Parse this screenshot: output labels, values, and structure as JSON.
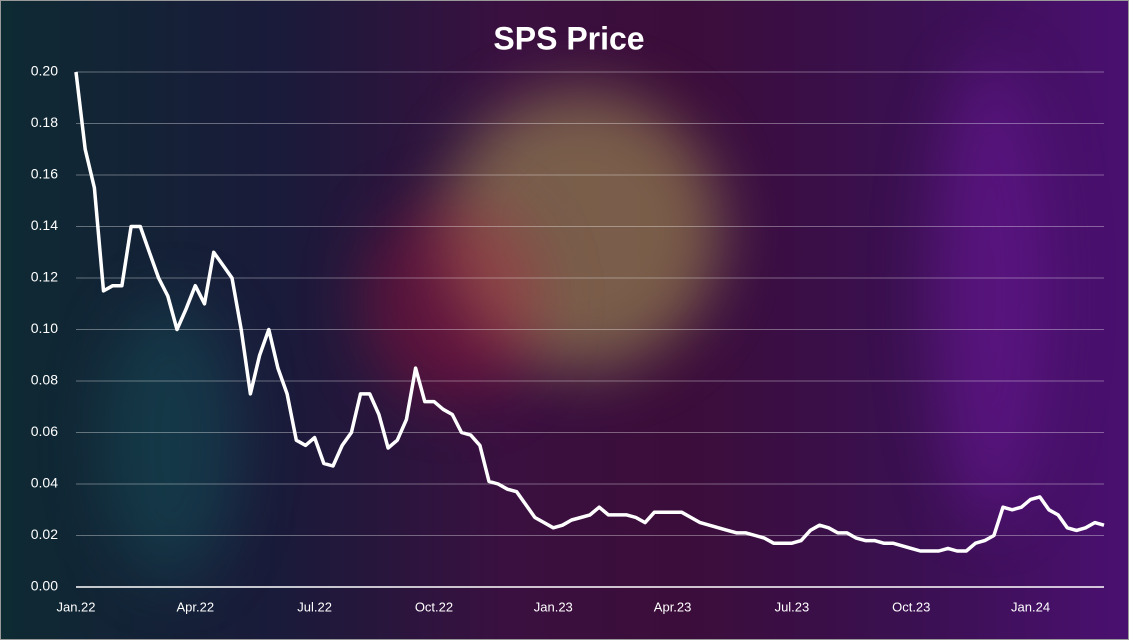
{
  "chart_data": {
    "type": "line",
    "title": "SPS Price",
    "categories": [
      "Jan.22",
      null,
      null,
      null,
      null,
      null,
      null,
      null,
      null,
      null,
      null,
      null,
      null,
      "Apr.22",
      null,
      null,
      null,
      null,
      null,
      null,
      null,
      null,
      null,
      null,
      null,
      null,
      "Jul.22",
      null,
      null,
      null,
      null,
      null,
      null,
      null,
      null,
      null,
      null,
      null,
      null,
      "Oct.22",
      null,
      null,
      null,
      null,
      null,
      null,
      null,
      null,
      null,
      null,
      null,
      null,
      "Jan.23",
      null,
      null,
      null,
      null,
      null,
      null,
      null,
      null,
      null,
      null,
      null,
      null,
      "Apr.23",
      null,
      null,
      null,
      null,
      null,
      null,
      null,
      null,
      null,
      null,
      null,
      null,
      "Jul.23",
      null,
      null,
      null,
      null,
      null,
      null,
      null,
      null,
      null,
      null,
      null,
      null,
      "Oct.23",
      null,
      null,
      null,
      null,
      null,
      null,
      null,
      null,
      null,
      null,
      null,
      null,
      "Jan.24",
      null,
      null,
      null,
      null,
      null,
      null,
      null,
      null
    ],
    "values": [
      0.2,
      0.17,
      0.155,
      0.115,
      0.117,
      0.117,
      0.14,
      0.14,
      0.13,
      0.12,
      0.113,
      0.1,
      0.108,
      0.117,
      0.11,
      0.13,
      0.125,
      0.12,
      0.1,
      0.075,
      0.09,
      0.1,
      0.085,
      0.075,
      0.057,
      0.055,
      0.058,
      0.048,
      0.047,
      0.055,
      0.06,
      0.075,
      0.075,
      0.067,
      0.054,
      0.057,
      0.065,
      0.085,
      0.072,
      0.072,
      0.069,
      0.067,
      0.06,
      0.059,
      0.055,
      0.041,
      0.04,
      0.038,
      0.037,
      0.032,
      0.027,
      0.025,
      0.023,
      0.024,
      0.026,
      0.027,
      0.028,
      0.031,
      0.028,
      0.028,
      0.028,
      0.027,
      0.025,
      0.029,
      0.029,
      0.029,
      0.029,
      0.027,
      0.025,
      0.024,
      0.023,
      0.022,
      0.021,
      0.021,
      0.02,
      0.019,
      0.017,
      0.017,
      0.017,
      0.018,
      0.022,
      0.024,
      0.023,
      0.021,
      0.021,
      0.019,
      0.018,
      0.018,
      0.017,
      0.017,
      0.016,
      0.015,
      0.014,
      0.014,
      0.014,
      0.015,
      0.014,
      0.014,
      0.017,
      0.018,
      0.02,
      0.031,
      0.03,
      0.031,
      0.034,
      0.035,
      0.03,
      0.028,
      0.023,
      0.022,
      0.023,
      0.025,
      0.024
    ],
    "color": "#ffffff",
    "ylim": [
      0,
      0.2
    ],
    "yticks": [
      {
        "value": 0,
        "label": "0.00"
      },
      {
        "value": 0.02,
        "label": "0.02"
      },
      {
        "value": 0.04,
        "label": "0.04"
      },
      {
        "value": 0.06,
        "label": "0.06"
      },
      {
        "value": 0.08,
        "label": "0.08"
      },
      {
        "value": 0.1,
        "label": "0.10"
      },
      {
        "value": 0.12,
        "label": "0.12"
      },
      {
        "value": 0.14,
        "label": "0.14"
      },
      {
        "value": 0.16,
        "label": "0.16"
      },
      {
        "value": 0.18,
        "label": "0.18"
      },
      {
        "value": 0.2,
        "label": "0.20"
      }
    ],
    "grid": true
  }
}
